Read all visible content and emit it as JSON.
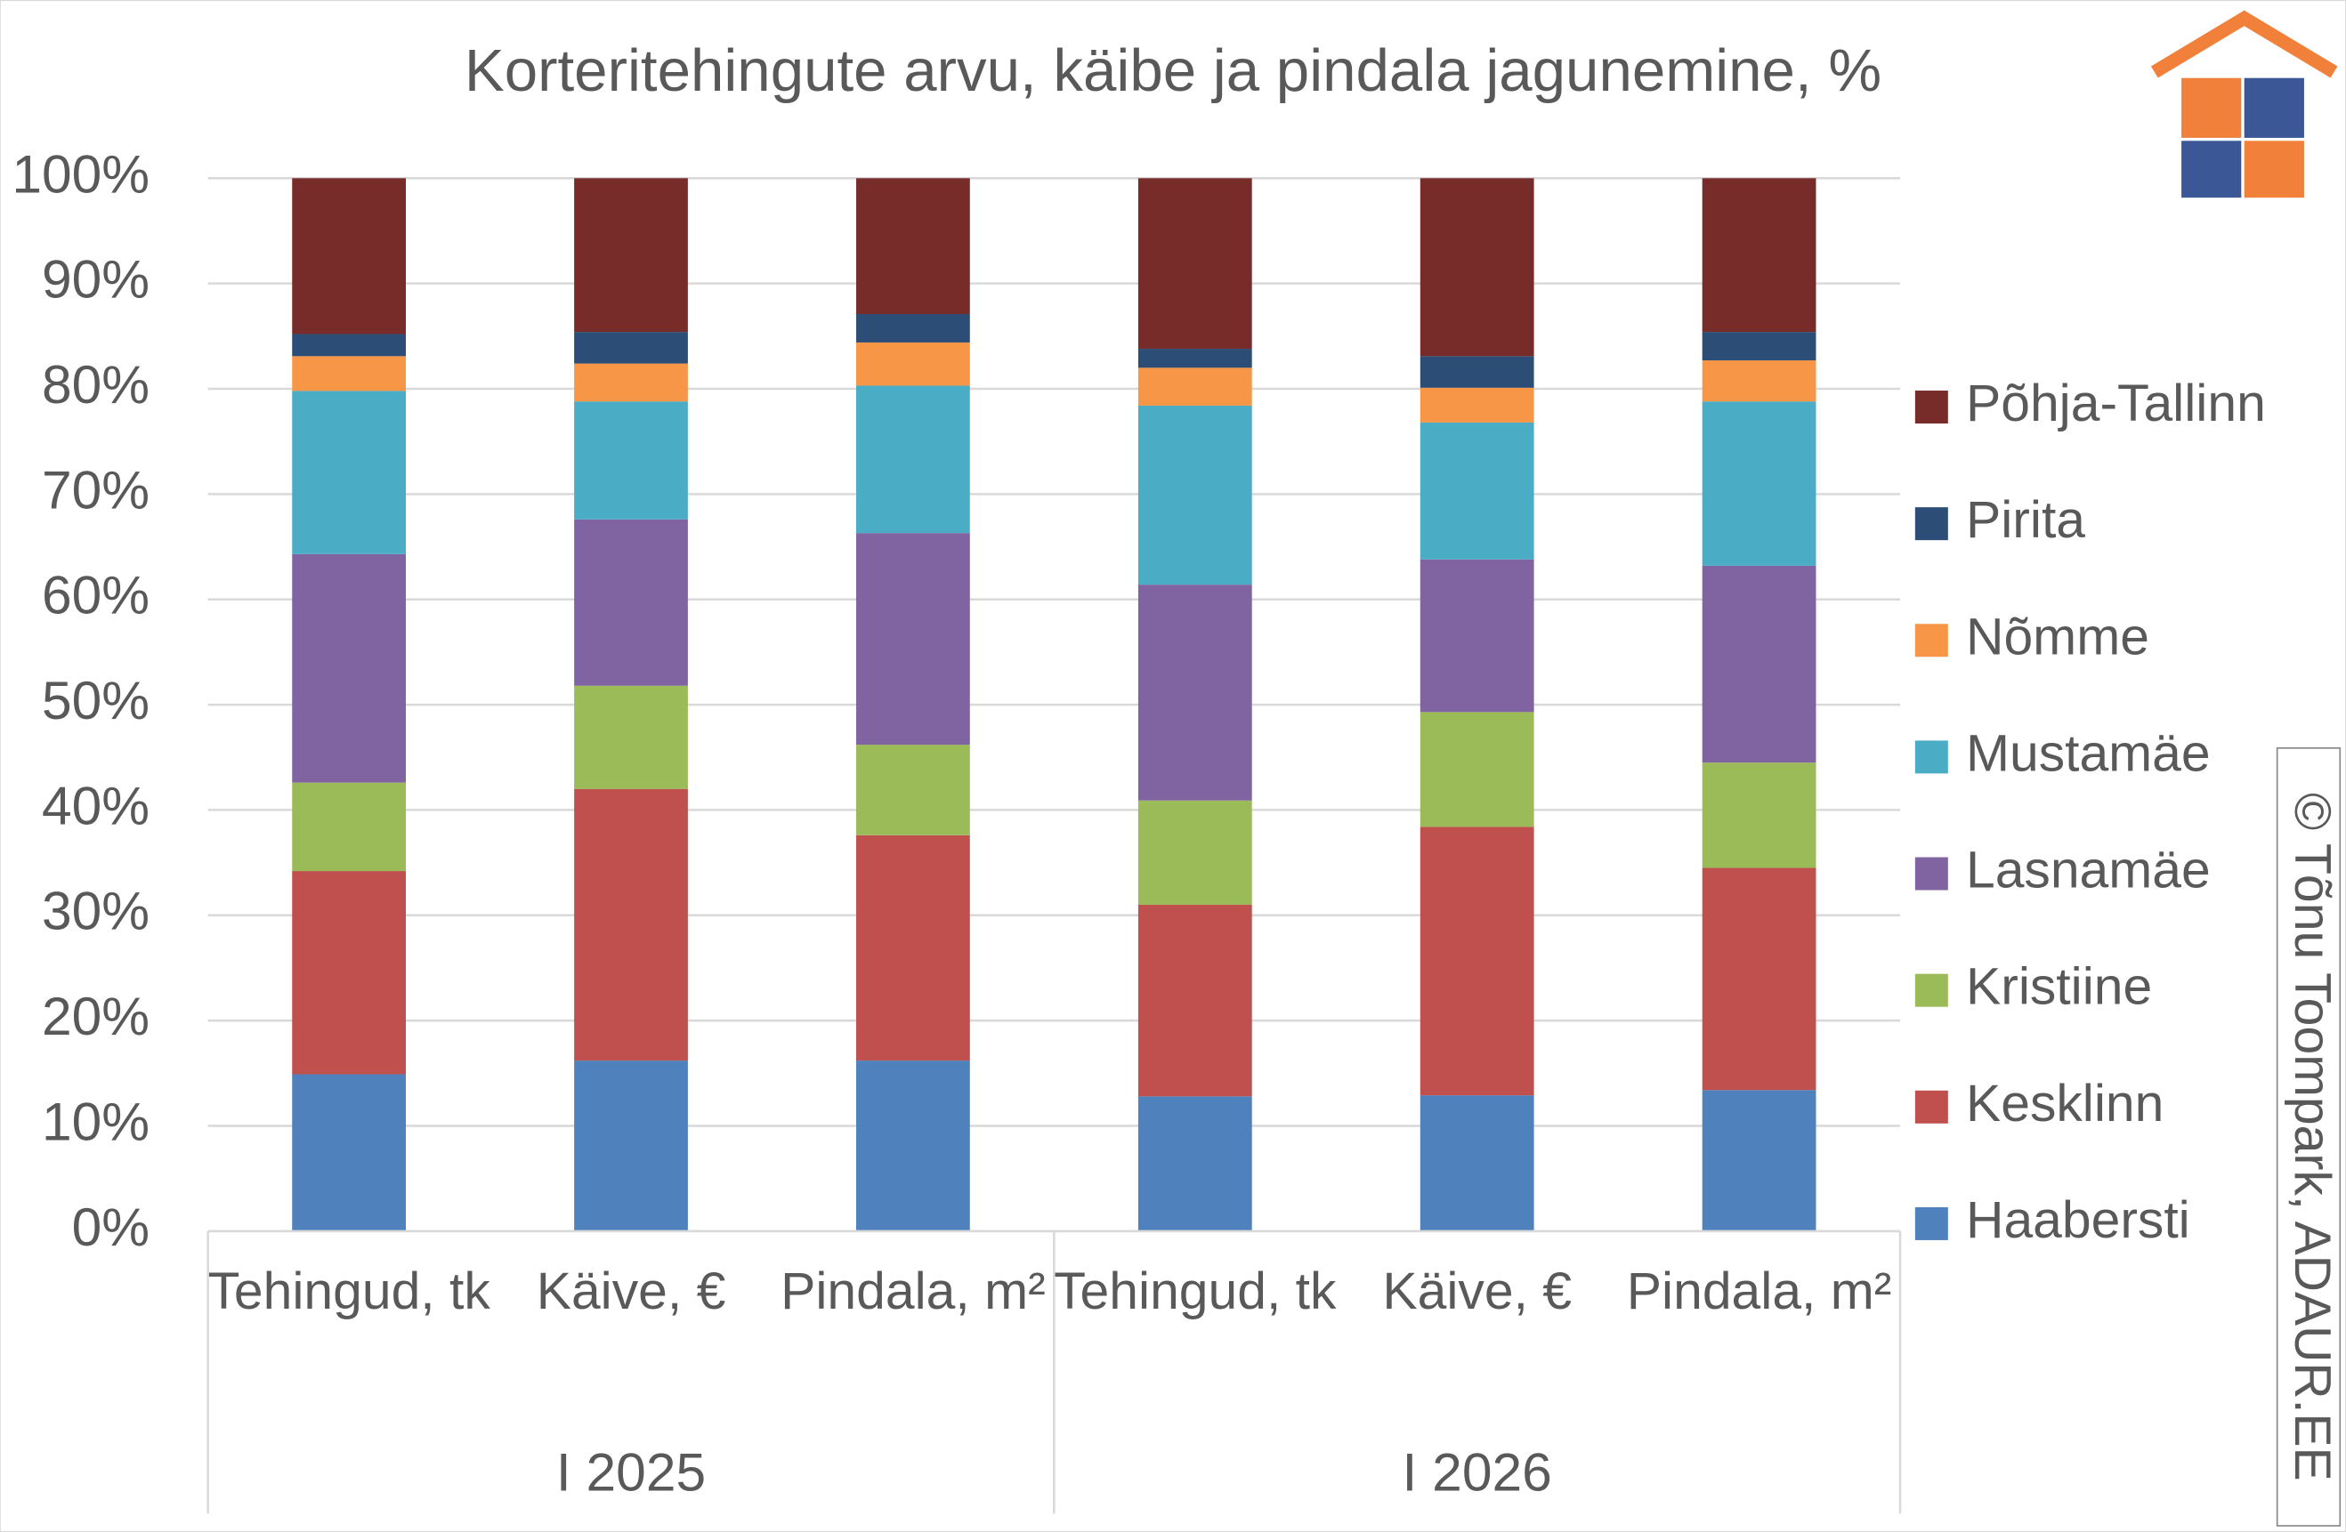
{
  "chart_data": {
    "type": "stacked_bar_100",
    "title": "Korteritehingute arvu, käibe ja pindala jagunemine, %",
    "categories": [
      "Tehingud, tk",
      "Käive, €",
      "Pindala, m²",
      "Tehingud, tk",
      "Käive, €",
      "Pindala, m²"
    ],
    "groups": [
      {
        "label": "I 2025",
        "size": 3
      },
      {
        "label": "I 2026",
        "size": 3
      }
    ],
    "series": [
      {
        "name": "Haabersti",
        "color": "#4f81bd",
        "values": [
          14.9,
          16.2,
          16.2,
          12.8,
          12.9,
          13.4
        ]
      },
      {
        "name": "Kesklinn",
        "color": "#c0504d",
        "values": [
          19.3,
          25.8,
          21.4,
          18.2,
          25.5,
          21.1
        ]
      },
      {
        "name": "Kristiine",
        "color": "#9bbb59",
        "values": [
          8.4,
          9.8,
          8.6,
          9.9,
          10.9,
          10.0
        ]
      },
      {
        "name": "Lasnamäe",
        "color": "#8064a2",
        "values": [
          21.7,
          15.8,
          20.1,
          20.5,
          14.5,
          18.7
        ]
      },
      {
        "name": "Mustamäe",
        "color": "#4bacc6",
        "values": [
          15.5,
          11.2,
          14.0,
          17.0,
          13.0,
          15.6
        ]
      },
      {
        "name": "Nõmme",
        "color": "#f79646",
        "values": [
          3.3,
          3.6,
          4.1,
          3.6,
          3.3,
          3.9
        ]
      },
      {
        "name": "Pirita",
        "color": "#2c4d75",
        "values": [
          2.1,
          3.0,
          2.7,
          1.8,
          3.0,
          2.7
        ]
      },
      {
        "name": "Põhja-Tallinn",
        "color": "#772c2a",
        "values": [
          14.8,
          14.6,
          12.9,
          16.2,
          16.9,
          14.6
        ]
      }
    ],
    "ylim": [
      0,
      100
    ],
    "yticks": [
      {
        "value": 0,
        "label": "0%"
      },
      {
        "value": 10,
        "label": "10%"
      },
      {
        "value": 20,
        "label": "20%"
      },
      {
        "value": 30,
        "label": "30%"
      },
      {
        "value": 40,
        "label": "40%"
      },
      {
        "value": 50,
        "label": "50%"
      },
      {
        "value": 60,
        "label": "60%"
      },
      {
        "value": 70,
        "label": "70%"
      },
      {
        "value": 80,
        "label": "80%"
      },
      {
        "value": 90,
        "label": "90%"
      },
      {
        "value": 100,
        "label": "100%"
      }
    ],
    "grid": true,
    "legend": "right",
    "watermark": "© Tõnu Toompark, ADAUR.EE"
  }
}
